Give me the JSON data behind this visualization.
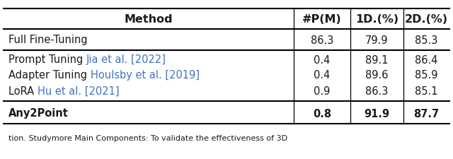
{
  "columns": [
    "Method",
    "#P(M)",
    "1D.(%)",
    "2D.(%)"
  ],
  "rows": [
    {
      "method_parts": [
        {
          "text": "Full Fine-Tuning",
          "color": "#1a1a1a"
        }
      ],
      "values": [
        "86.3",
        "79.9",
        "85.3"
      ],
      "bold_values": false,
      "group": 0
    },
    {
      "method_parts": [
        {
          "text": "Prompt Tuning ",
          "color": "#1a1a1a"
        },
        {
          "text": "Jia et al. [2022]",
          "color": "#4472C4"
        }
      ],
      "values": [
        "0.4",
        "89.1",
        "86.4"
      ],
      "bold_values": false,
      "group": 1
    },
    {
      "method_parts": [
        {
          "text": "Adapter Tuning ",
          "color": "#1a1a1a"
        },
        {
          "text": "Houlsby et al. [2019]",
          "color": "#4472C4"
        }
      ],
      "values": [
        "0.4",
        "89.6",
        "85.9"
      ],
      "bold_values": false,
      "group": 1
    },
    {
      "method_parts": [
        {
          "text": "LoRA ",
          "color": "#1a1a1a"
        },
        {
          "text": "Hu et al. [2021]",
          "color": "#4472C4"
        }
      ],
      "values": [
        "0.9",
        "86.3",
        "85.1"
      ],
      "bold_values": false,
      "group": 1
    },
    {
      "method_parts": [
        {
          "text": "Any2Point",
          "color": "#1a1a1a"
        }
      ],
      "values": [
        "0.8",
        "91.9",
        "87.7"
      ],
      "bold_values": true,
      "group": 2
    }
  ],
  "caption": "tion. Studymore Main Components: To validate the effectiveness of 3D",
  "font_size": 10.5,
  "header_font_size": 11.5,
  "bg_color": "#ffffff"
}
